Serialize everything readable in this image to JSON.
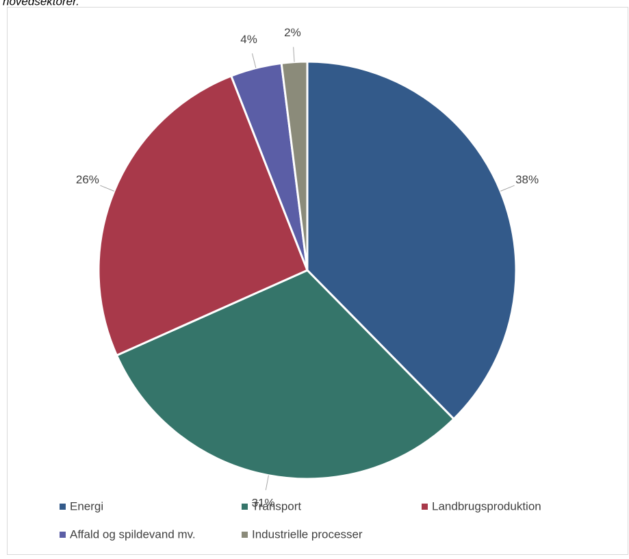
{
  "chart_data": {
    "type": "pie",
    "title": "hovedsektorer.",
    "categories": [
      "Energi",
      "Transport",
      "Landbrugsproduktion",
      "Affald og spildevand mv.",
      "Industrielle processer"
    ],
    "values": [
      38,
      31,
      26,
      4,
      2
    ],
    "value_labels": [
      "38%",
      "31%",
      "26%",
      "4%",
      "2%"
    ],
    "colors": [
      "#335a8a",
      "#35756a",
      "#a8394a",
      "#5b5ea6",
      "#8b8b7a"
    ],
    "legend": "bottom"
  }
}
